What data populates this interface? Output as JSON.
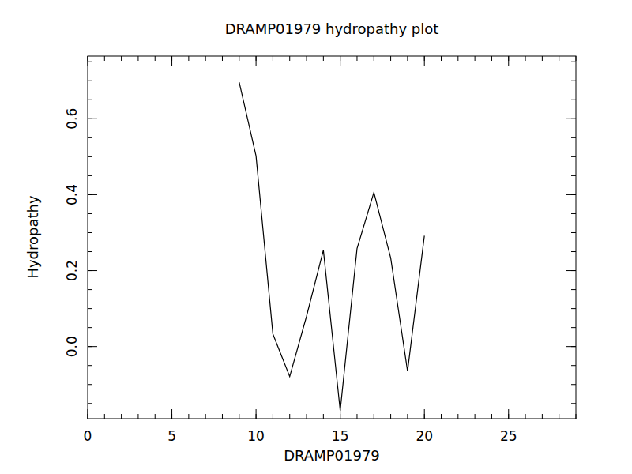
{
  "chart_data": {
    "type": "line",
    "title": "DRAMP01979 hydropathy plot",
    "x_label": "DRAMP01979",
    "y_label": "Hydropathy",
    "x": [
      9,
      10,
      11,
      12,
      13,
      14,
      15,
      16,
      17,
      18,
      19,
      20
    ],
    "series": [
      {
        "name": null,
        "color": "#000000",
        "values": [
          0.696,
          0.502,
          0.033,
          -0.079,
          0.08,
          0.254,
          -0.169,
          0.258,
          0.406,
          0.233,
          -0.065,
          0.292
        ]
      }
    ],
    "xlim": [
      0,
      29
    ],
    "ylim": [
      -0.19,
      0.765
    ],
    "xticks": [
      0,
      5,
      10,
      15,
      20,
      25
    ],
    "yticks": [
      {
        "value": 0,
        "label": "0.0"
      },
      {
        "value": 0.2,
        "label": "0.2"
      },
      {
        "value": 0.4,
        "label": "0.4"
      },
      {
        "value": 0.6,
        "label": "0.6"
      }
    ],
    "grid": false
  }
}
